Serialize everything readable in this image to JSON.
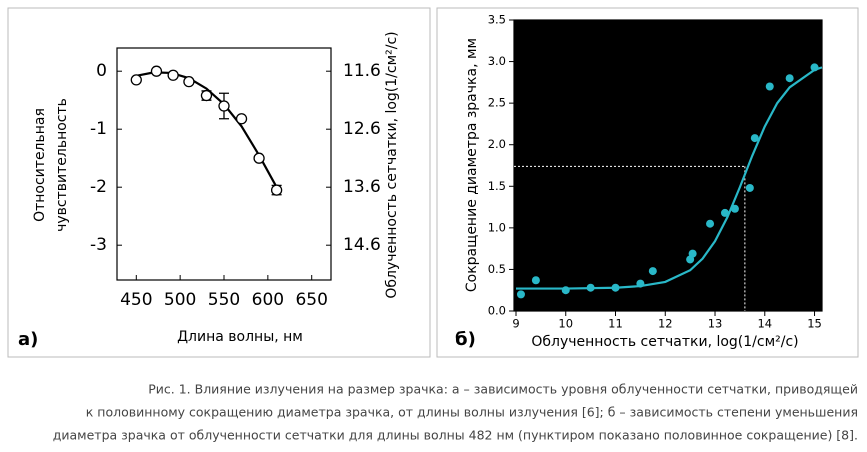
{
  "chart_data": [
    {
      "type": "scatter",
      "panel": "а)",
      "xlabel": "Длина волны, нм",
      "ylabel": [
        "Относительная",
        "чувствительность"
      ],
      "y2label": "Облученность сетчатки, log(1/см²/с)",
      "x": [
        450,
        473,
        492,
        510,
        530,
        550,
        570,
        590,
        610
      ],
      "values": [
        -0.15,
        0.0,
        -0.07,
        -0.18,
        -0.42,
        -0.6,
        -0.82,
        -1.5,
        -2.05
      ],
      "errors": [
        null,
        null,
        null,
        null,
        0.08,
        0.22,
        null,
        null,
        0.08
      ],
      "fit": {
        "x": [
          450,
          470,
          490,
          510,
          530,
          550,
          570,
          590,
          610
        ],
        "values": [
          -0.08,
          -0.02,
          -0.03,
          -0.12,
          -0.3,
          -0.57,
          -0.95,
          -1.45,
          -2.0
        ]
      },
      "color": "#000000",
      "hollow": true,
      "background": "#ffffff",
      "xlim": [
        428,
        672
      ],
      "xticks": [
        450,
        500,
        550,
        600,
        650
      ],
      "ylim": [
        -3.6,
        0.4
      ],
      "yticks": [
        0,
        -1,
        -2,
        -3
      ],
      "y2lim": [
        15.2,
        11.2
      ],
      "y2ticks": [
        11.6,
        12.6,
        13.6,
        14.6
      ]
    },
    {
      "type": "scatter",
      "panel": "б)",
      "xlabel": "Облученность сетчатки, log(1/см²/с)",
      "ylabel": [
        "Сокращение диаметра зрачка, мм"
      ],
      "x": [
        9.1,
        9.4,
        10,
        10.5,
        11,
        11.5,
        11.75,
        12.5,
        12.55,
        12.9,
        13.2,
        13.4,
        13.7,
        13.8,
        14.1,
        14.5,
        15
      ],
      "values": [
        0.2,
        0.37,
        0.25,
        0.28,
        0.28,
        0.33,
        0.48,
        0.62,
        0.69,
        1.05,
        1.18,
        1.23,
        1.48,
        2.08,
        2.7,
        2.8,
        2.93
      ],
      "fit": {
        "x": [
          9,
          10,
          11,
          11.5,
          12,
          12.5,
          12.75,
          13,
          13.25,
          13.5,
          13.75,
          14,
          14.25,
          14.5,
          15,
          15.15
        ],
        "values": [
          0.27,
          0.27,
          0.28,
          0.3,
          0.35,
          0.49,
          0.63,
          0.84,
          1.13,
          1.49,
          1.87,
          2.22,
          2.5,
          2.69,
          2.9,
          2.93
        ]
      },
      "half": {
        "x": 13.6,
        "y": 1.74
      },
      "color": "#29b8c8",
      "hollow": false,
      "background": "#000000",
      "xlim": [
        8.96,
        15.15
      ],
      "xticks": [
        9,
        10,
        11,
        12,
        13,
        14,
        15
      ],
      "ylim": [
        0,
        3.5
      ],
      "yticks": [
        {
          "value": 0,
          "label": "0.0"
        },
        {
          "value": 0.5,
          "label": "0.5"
        },
        {
          "value": 1,
          "label": "1.0"
        },
        {
          "value": 1.5,
          "label": "1.5"
        },
        {
          "value": 2,
          "label": "2.0"
        },
        {
          "value": 2.5,
          "label": "2.5"
        },
        {
          "value": 3,
          "label": "3.0"
        },
        {
          "value": 3.5,
          "label": "3.5"
        }
      ]
    }
  ],
  "caption": [
    "Рис. 1. Влияние излучения на размер зрачка: а – зависимость уровня облученности сетчатки, приводящей",
    "к половинному сокращению диаметра зрачка, от длины волны излучения [6]; б – зависимость степени уменьшения",
    "диаметра зрачка от облученности сетчатки для длины волны 482 нм (пунктиром показано половинное сокращение) [8]."
  ]
}
